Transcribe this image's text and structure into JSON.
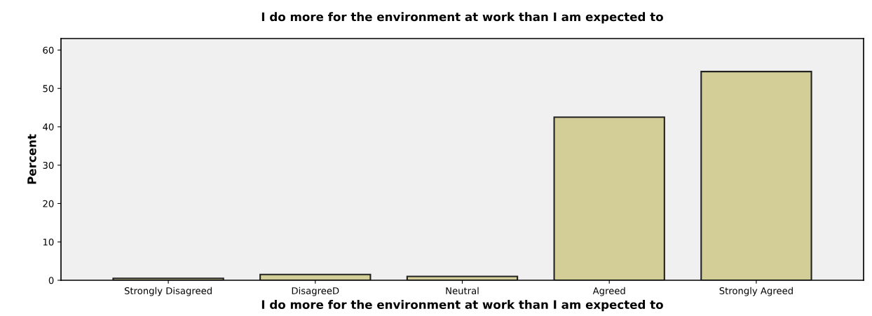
{
  "chart_data": {
    "type": "bar",
    "title": "I do more for the environment at work than I am expected to",
    "xlabel": "I do more for the environment at work than I am expected to",
    "ylabel": "Percent",
    "categories": [
      "Strongly Disagreed",
      "DisagreeD",
      "Neutral",
      "Agreed",
      "Strongly Agreed"
    ],
    "values": [
      0.5,
      1.5,
      1.0,
      42.5,
      54.4
    ],
    "color": "#d3ce97",
    "ylim": [
      0,
      63
    ],
    "yticks": [
      0,
      10,
      20,
      30,
      40,
      50,
      60
    ],
    "grid": false,
    "legend": false
  }
}
